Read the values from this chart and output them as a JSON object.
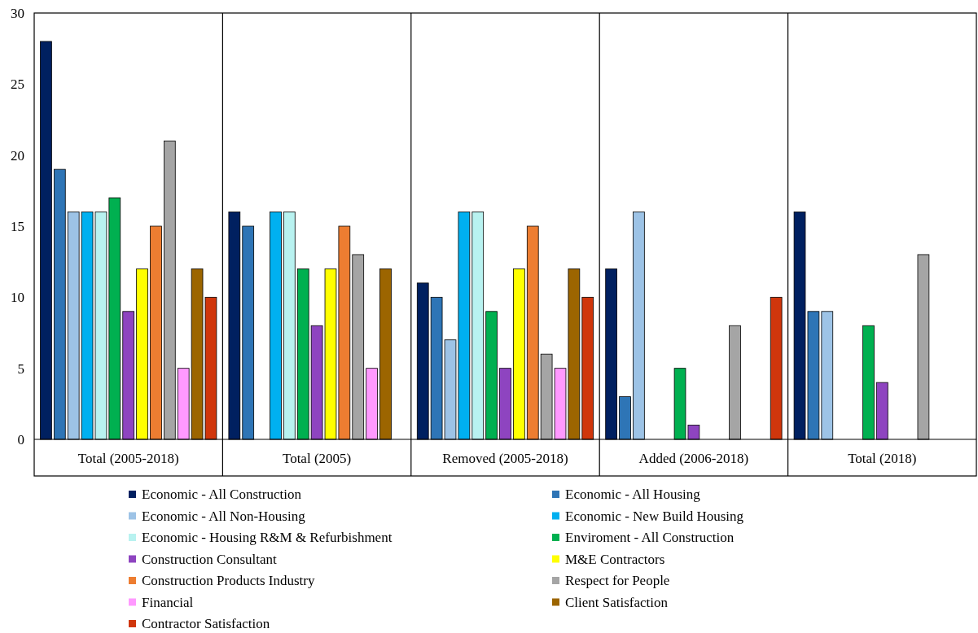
{
  "chart_data": {
    "type": "bar",
    "categories": [
      "Total (2005-2018)",
      "Total (2005)",
      "Removed (2005-2018)",
      "Added (2006-2018)",
      "Total (2018)"
    ],
    "ylim": [
      0,
      30
    ],
    "yticks": [
      0,
      5,
      10,
      15,
      20,
      25,
      30
    ],
    "grid": false,
    "legend": "bottom",
    "series": [
      {
        "name": "Economic - All Construction",
        "color": "#002060",
        "values": [
          28,
          16,
          11,
          12,
          16
        ]
      },
      {
        "name": "Economic - All Housing",
        "color": "#2e75b6",
        "values": [
          19,
          15,
          10,
          3,
          9
        ]
      },
      {
        "name": "Economic - All Non-Housing",
        "color": "#9dc3e6",
        "values": [
          16,
          0,
          7,
          16,
          9
        ]
      },
      {
        "name": "Economic - New Build Housing",
        "color": "#00b0f0",
        "values": [
          16,
          16,
          16,
          0,
          0
        ]
      },
      {
        "name": "Economic - Housing R&M & Refurbishment",
        "color": "#b8f2f0",
        "values": [
          16,
          16,
          16,
          0,
          0
        ]
      },
      {
        "name": "Enviroment - All Construction",
        "color": "#00b050",
        "values": [
          17,
          12,
          9,
          5,
          8
        ]
      },
      {
        "name": "Construction Consultant",
        "color": "#8e44c0",
        "values": [
          9,
          8,
          5,
          1,
          4
        ]
      },
      {
        "name": "M&E Contractors",
        "color": "#ffff00",
        "values": [
          12,
          12,
          12,
          0,
          0
        ]
      },
      {
        "name": "Construction Products Industry",
        "color": "#ed7d31",
        "values": [
          15,
          15,
          15,
          0,
          0
        ]
      },
      {
        "name": "Respect for People",
        "color": "#a5a5a5",
        "values": [
          21,
          13,
          6,
          8,
          13
        ]
      },
      {
        "name": "Financial",
        "color": "#ff99ff",
        "values": [
          5,
          5,
          5,
          0,
          0
        ]
      },
      {
        "name": "Client Satisfaction",
        "color": "#9c6500",
        "values": [
          12,
          12,
          12,
          0,
          0
        ]
      },
      {
        "name": "Contractor Satisfaction",
        "color": "#d0360c",
        "values": [
          10,
          0,
          10,
          10,
          0
        ]
      }
    ]
  }
}
